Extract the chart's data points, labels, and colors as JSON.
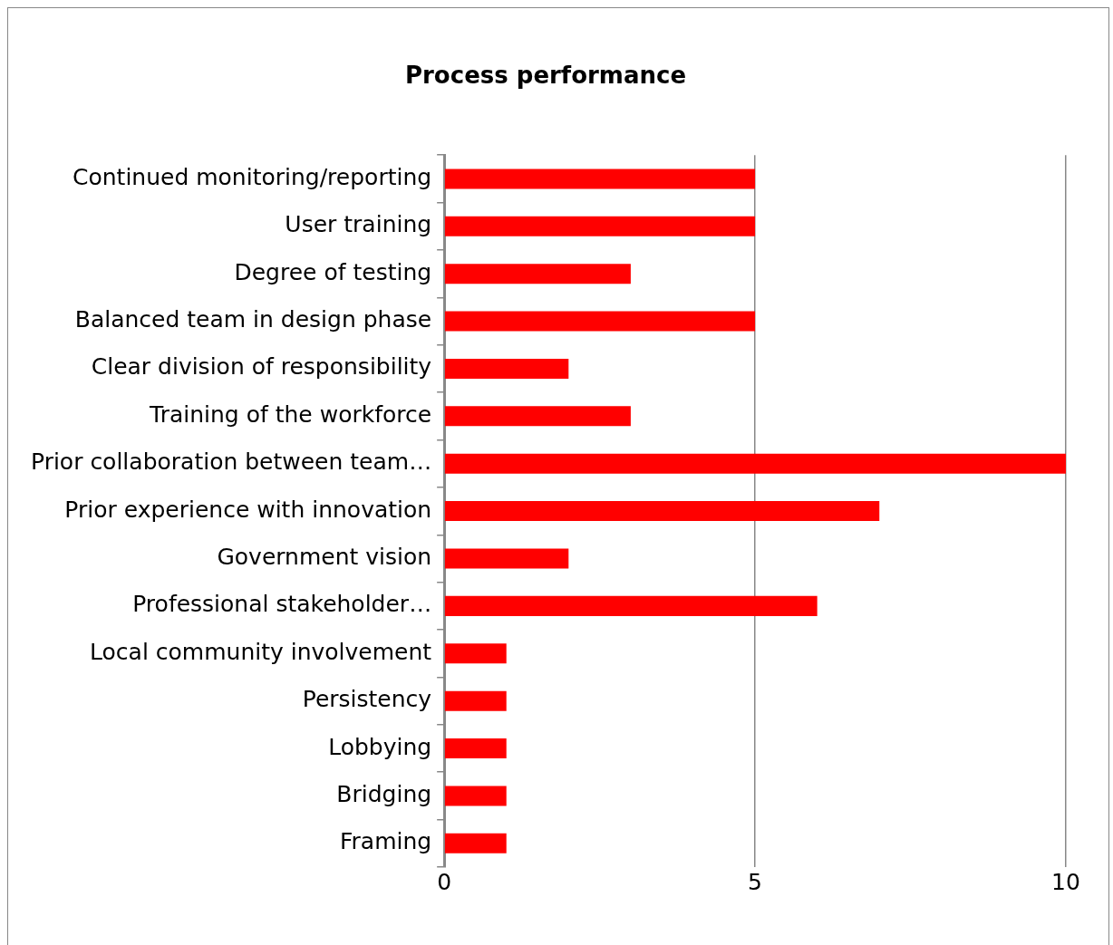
{
  "chart_data": {
    "type": "bar",
    "orientation": "horizontal",
    "title": "Process performance",
    "categories": [
      "Continued monitoring/reporting",
      "User training",
      "Degree of testing",
      "Balanced team in design phase",
      "Clear division of responsibility",
      "Training of the workforce",
      "Prior collaboration between team…",
      "Prior experience with innovation",
      "Government vision",
      "Professional stakeholder…",
      "Local community involvement",
      "Persistency",
      "Lobbying",
      "Bridging",
      "Framing"
    ],
    "values": [
      5,
      5,
      3,
      5,
      2,
      3,
      10,
      7,
      2,
      6,
      1,
      1,
      1,
      1,
      1
    ],
    "color": "#ff0000",
    "xlim": [
      0,
      10
    ],
    "xticks": [
      0,
      5,
      10
    ],
    "grid": "x",
    "legend": false
  }
}
